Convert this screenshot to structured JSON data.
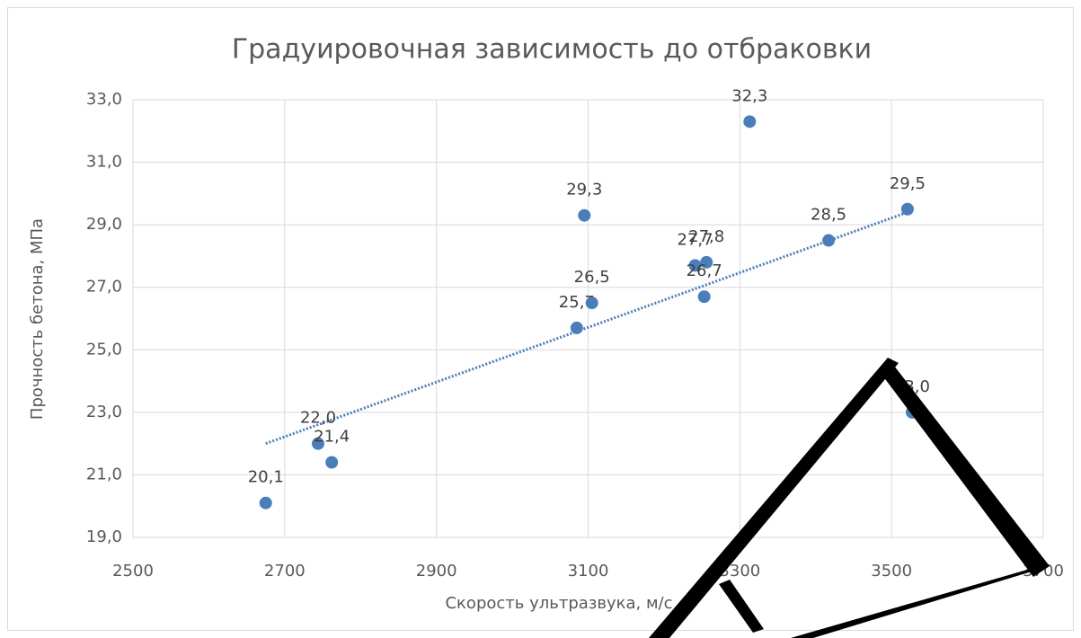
{
  "chart_data": {
    "type": "scatter",
    "title": "Градуировочная зависимость до отбраковки",
    "xlabel": "Скорость ультразвука, м/с",
    "ylabel": "Прочность бетона, МПа",
    "series": [
      {
        "color": "#4a7ebb",
        "x": [
          2675,
          2744,
          2762,
          3085,
          3095,
          3105,
          3241,
          3256,
          3253,
          3313,
          3417,
          3521,
          3527
        ],
        "values": [
          20.1,
          22.0,
          21.4,
          25.7,
          29.3,
          26.5,
          27.7,
          27.8,
          26.7,
          32.3,
          28.5,
          29.5,
          23.0
        ],
        "value_labels": [
          "20,1",
          "22,0",
          "21,4",
          "25,7",
          "29,3",
          "26,5",
          "27,7",
          "27,8",
          "26,7",
          "32,3",
          "28,5",
          "29,5",
          "23,0"
        ]
      }
    ],
    "trendline": {
      "color": "#4a7ebb",
      "x": [
        2675,
        3521
      ],
      "values": [
        22.0,
        29.4
      ]
    },
    "xlim": [
      2500,
      3700
    ],
    "xticks": [
      2500,
      2700,
      2900,
      3100,
      3300,
      3500,
      3700
    ],
    "ylim": [
      19,
      33
    ],
    "yticks": [
      {
        "value": 19,
        "label": "19,0"
      },
      {
        "value": 21,
        "label": "21,0"
      },
      {
        "value": 23,
        "label": "23,0"
      },
      {
        "value": 25,
        "label": "25,0"
      },
      {
        "value": 27,
        "label": "27,0"
      },
      {
        "value": 29,
        "label": "29,0"
      },
      {
        "value": 31,
        "label": "31,0"
      },
      {
        "value": 33,
        "label": "33,0"
      }
    ],
    "grid": true
  }
}
